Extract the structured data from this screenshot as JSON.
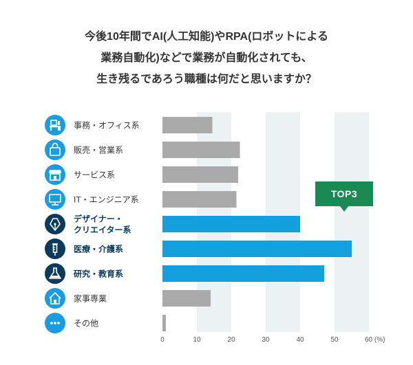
{
  "title_lines": [
    "今後10年間でAI(人工知能)やRPA(ロボットによる",
    "業務自動化)などで業務が自動化されても、",
    "生き残るであろう職種は何だと思いますか？"
  ],
  "callout": {
    "label": "TOP3",
    "color": "#1a8a55"
  },
  "colors": {
    "highlight": "#14a0dc",
    "normal": "#aaaaaa",
    "icon_light": "#1b9be0",
    "icon_dark": "#0b3a5c",
    "band": "#ecf1f4"
  },
  "chart_data": {
    "type": "bar",
    "orientation": "horizontal",
    "title": "今後10年間でAI(人工知能)やRPA(ロボットによる業務自動化)などで業務が自動化されても、生き残るであろう職種は何だと思いますか？",
    "categories": [
      {
        "label_lines": [
          "事務・オフィス系"
        ],
        "icon": "office-desk-icon",
        "highlight": false
      },
      {
        "label_lines": [
          "販売・営業系"
        ],
        "icon": "shopping-bag-icon",
        "highlight": false
      },
      {
        "label_lines": [
          "サービス系"
        ],
        "icon": "shop-storefront-icon",
        "highlight": false
      },
      {
        "label_lines": [
          "IT・エンジニア系"
        ],
        "icon": "monitor-icon",
        "highlight": false
      },
      {
        "label_lines": [
          "デザイナー・",
          "クリエイター系"
        ],
        "icon": "pen-nib-icon",
        "highlight": true
      },
      {
        "label_lines": [
          "医療・介護系"
        ],
        "icon": "syringe-icon",
        "highlight": true
      },
      {
        "label_lines": [
          "研究・教育系"
        ],
        "icon": "flask-icon",
        "highlight": true
      },
      {
        "label_lines": [
          "家事専業"
        ],
        "icon": "house-icon",
        "highlight": false
      },
      {
        "label_lines": [
          "その他"
        ],
        "icon": "ellipsis-icon",
        "highlight": false
      }
    ],
    "values": [
      14.5,
      22.5,
      22,
      21.5,
      40,
      55,
      47,
      14,
      1
    ],
    "xlim": [
      0,
      60
    ],
    "ticks": [
      "0",
      "10",
      "20",
      "30",
      "40",
      "50"
    ],
    "last_tick": "60 (%)",
    "xlabel": "",
    "ylabel": ""
  }
}
